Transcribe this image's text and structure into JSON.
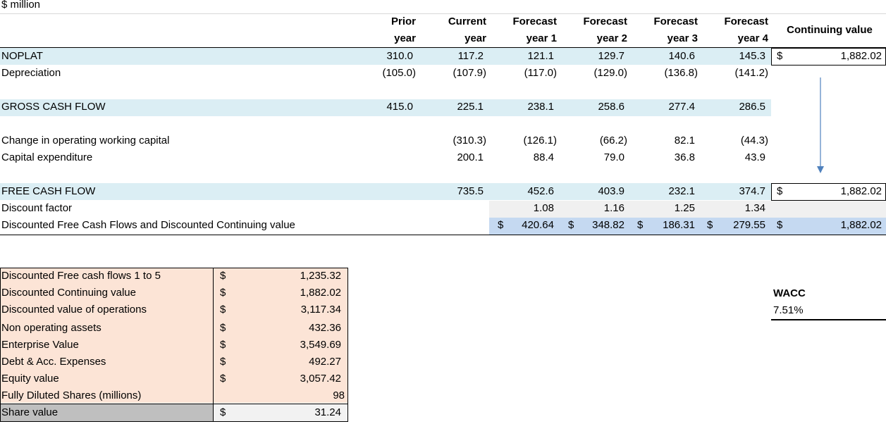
{
  "header": {
    "unit_label": "$ million"
  },
  "columns": [
    {
      "line1": "Prior",
      "line2": "year"
    },
    {
      "line1": "Current",
      "line2": "year"
    },
    {
      "line1": "Forecast",
      "line2": "year 1"
    },
    {
      "line1": "Forecast",
      "line2": "year 2"
    },
    {
      "line1": "Forecast",
      "line2": "year 3"
    },
    {
      "line1": "Forecast",
      "line2": "year 4"
    }
  ],
  "continuing_value_header": "Continuing value",
  "rows": {
    "noplat": {
      "label": "NOPLAT",
      "values": [
        "310.0",
        "117.2",
        "121.1",
        "129.7",
        "140.6",
        "145.3"
      ],
      "cv_sign": "$",
      "cv": "1,882.02"
    },
    "depreciation": {
      "label": "Depreciation",
      "values": [
        "(105.0)",
        "(107.9)",
        "(117.0)",
        "(129.0)",
        "(136.8)",
        "(141.2)"
      ]
    },
    "gross_cash_flow": {
      "label": "GROSS CASH FLOW",
      "values": [
        "415.0",
        "225.1",
        "238.1",
        "258.6",
        "277.4",
        "286.5"
      ]
    },
    "change_wc": {
      "label": "Change in operating working capital",
      "values": [
        "",
        "(310.3)",
        "(126.1)",
        "(66.2)",
        "82.1",
        "(44.3)"
      ]
    },
    "capex": {
      "label": "Capital expenditure",
      "values": [
        "",
        "200.1",
        "88.4",
        "79.0",
        "36.8",
        "43.9"
      ]
    },
    "free_cash_flow": {
      "label": "FREE CASH FLOW",
      "values": [
        "",
        "735.5",
        "452.6",
        "403.9",
        "232.1",
        "374.7"
      ],
      "cv_sign": "$",
      "cv": "1,882.02"
    },
    "discount_factor": {
      "label": "Discount factor",
      "values": [
        "",
        "",
        "1.08",
        "1.16",
        "1.25",
        "1.34"
      ]
    },
    "discounted": {
      "label": "Discounted Free Cash Flows and Discounted Continuing value",
      "sign": "$",
      "values": [
        "",
        "",
        "420.64",
        "348.82",
        "186.31",
        "279.55"
      ],
      "cv_sign": "$",
      "cv": "1,882.02"
    }
  },
  "summary": [
    {
      "label": "Discounted Free cash flows 1 to 5",
      "sign": "$",
      "value": "1,235.32"
    },
    {
      "label": "Discounted Continuing value",
      "sign": "$",
      "value": "1,882.02"
    },
    {
      "label": "Discounted value of operations",
      "sign": "$",
      "value": "3,117.34"
    },
    {
      "label": "Non operating assets",
      "sign": "$",
      "value": "432.36"
    },
    {
      "label": "Enterprise Value",
      "sign": "$",
      "value": "3,549.69"
    },
    {
      "label": "Debt & Acc. Expenses",
      "sign": "$",
      "value": "492.27"
    },
    {
      "label": "Equity value",
      "sign": "$",
      "value": "3,057.42"
    },
    {
      "label": "Fully Diluted Shares (millions)",
      "sign": "",
      "value": "98"
    },
    {
      "label": "Share value",
      "sign": "$",
      "value": "31.24"
    }
  ],
  "wacc": {
    "label": "WACC",
    "value": "7.51%"
  },
  "colors": {
    "band_blue": "#dbeef4",
    "grey_fill": "#f0f0f0",
    "disc_blue": "#c5d9f1",
    "summary_peach": "#fce4d6",
    "share_grey": "#bfbfbf",
    "arrow": "#4f81bd"
  }
}
